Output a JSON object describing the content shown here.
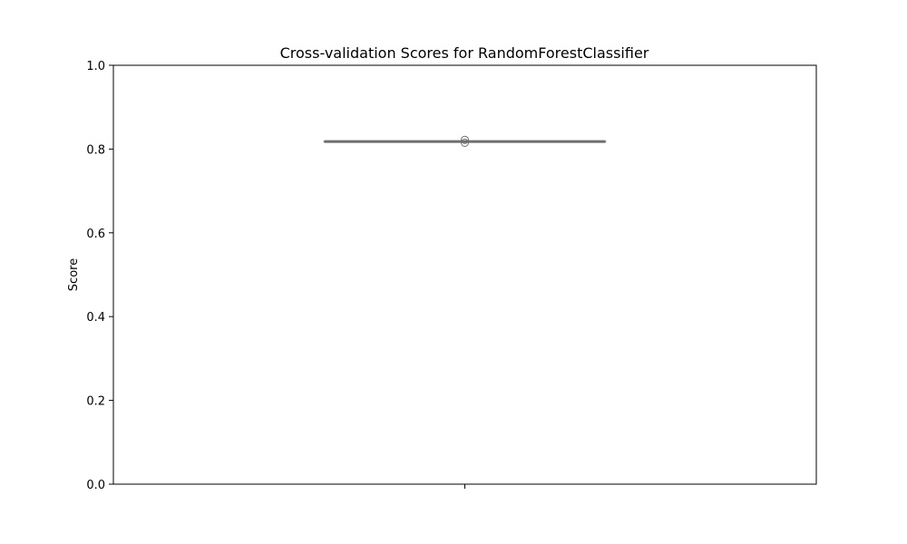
{
  "chart_data": {
    "type": "box",
    "title": "Cross-validation Scores for RandomForestClassifier",
    "xlabel": "",
    "ylabel": "Score",
    "ylim": [
      0,
      1
    ],
    "yticks": [
      "0.0",
      "0.2",
      "0.4",
      "0.6",
      "0.8",
      "1.0"
    ],
    "grid": false,
    "boxes": [
      {
        "category": "",
        "min": 0.818,
        "q1": 0.818,
        "median": 0.818,
        "q3": 0.818,
        "max": 0.818,
        "outliers": [
          0.815,
          0.822
        ]
      }
    ],
    "colors": {
      "box": "#6e6e6e",
      "axis": "#000000"
    }
  }
}
